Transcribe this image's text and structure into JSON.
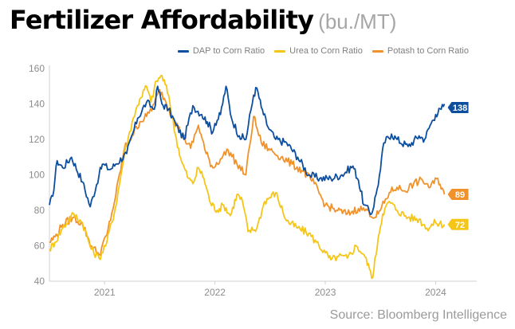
{
  "header": {
    "title": "Fertilizer Affordability",
    "subtitle": "(bu./MT)"
  },
  "source": "Source: Bloomberg Intelligence",
  "chart_data": {
    "type": "line",
    "title": "Fertilizer Affordability",
    "subtitle": "(bu./MT)",
    "xlabel": "",
    "ylabel": "",
    "ylim": [
      40,
      160
    ],
    "xlim": [
      2020.5,
      2024.3
    ],
    "yticks": [
      {
        "value": 40,
        "label": "40"
      },
      {
        "value": 60,
        "label": "60"
      },
      {
        "value": 80,
        "label": "80"
      },
      {
        "value": 100,
        "label": "100"
      },
      {
        "value": 120,
        "label": "120"
      },
      {
        "value": 140,
        "label": "140"
      },
      {
        "value": 160,
        "label": "160"
      }
    ],
    "xticks": [
      {
        "value": 2021.0,
        "label": "2021"
      },
      {
        "value": 2022.0,
        "label": "2022"
      },
      {
        "value": 2023.0,
        "label": "2023"
      },
      {
        "value": 2024.0,
        "label": "2024"
      }
    ],
    "grid": false,
    "legend": "top-right",
    "colors": {
      "dap": "#0d4f9e",
      "urea": "#f5c518",
      "potash": "#f0922b"
    },
    "series": [
      {
        "name": "DAP to Corn Ratio",
        "color": "#0d4f9e",
        "end_label": "138",
        "x": [
          2020.5,
          2020.53,
          2020.57,
          2020.62,
          2020.7,
          2020.8,
          2020.87,
          2020.95,
          2020.98,
          2021.05,
          2021.1,
          2021.2,
          2021.3,
          2021.38,
          2021.45,
          2021.48,
          2021.52,
          2021.58,
          2021.65,
          2021.72,
          2021.8,
          2021.88,
          2021.93,
          2021.98,
          2022.0,
          2022.05,
          2022.1,
          2022.15,
          2022.22,
          2022.28,
          2022.35,
          2022.38,
          2022.42,
          2022.48,
          2022.55,
          2022.65,
          2022.75,
          2022.85,
          2022.95,
          2023.05,
          2023.15,
          2023.25,
          2023.3,
          2023.35,
          2023.42,
          2023.47,
          2023.5,
          2023.53,
          2023.6,
          2023.65,
          2023.75,
          2023.85,
          2023.9,
          2023.95,
          2024.0,
          2024.05,
          2024.08
        ],
        "y": [
          83,
          88,
          108,
          104,
          110,
          96,
          82,
          100,
          106,
          103,
          106,
          112,
          132,
          141,
          137,
          150,
          140,
          137,
          128,
          120,
          139,
          134,
          130,
          124,
          129,
          134,
          150,
          132,
          122,
          120,
          145,
          149,
          138,
          127,
          120,
          118,
          110,
          100,
          98,
          98,
          100,
          105,
          97,
          83,
          78,
          92,
          103,
          118,
          123,
          120,
          116,
          122,
          120,
          128,
          134,
          137,
          140
        ]
      },
      {
        "name": "Urea to Corn Ratio",
        "color": "#f5c518",
        "end_label": "72",
        "x": [
          2020.5,
          2020.55,
          2020.62,
          2020.72,
          2020.8,
          2020.88,
          2020.95,
          2021.02,
          2021.1,
          2021.18,
          2021.25,
          2021.32,
          2021.38,
          2021.42,
          2021.47,
          2021.52,
          2021.58,
          2021.64,
          2021.7,
          2021.76,
          2021.8,
          2021.85,
          2021.9,
          2021.96,
          2022.02,
          2022.08,
          2022.14,
          2022.2,
          2022.25,
          2022.3,
          2022.38,
          2022.45,
          2022.55,
          2022.65,
          2022.75,
          2022.85,
          2022.92,
          2023.0,
          2023.05,
          2023.12,
          2023.2,
          2023.28,
          2023.35,
          2023.4,
          2023.43,
          2023.48,
          2023.52,
          2023.58,
          2023.65,
          2023.75,
          2023.85,
          2023.92,
          2024.0,
          2024.08
        ],
        "y": [
          58,
          62,
          70,
          78,
          73,
          58,
          53,
          62,
          82,
          112,
          130,
          143,
          150,
          141,
          153,
          156,
          145,
          123,
          107,
          98,
          95,
          104,
          98,
          84,
          80,
          83,
          77,
          89,
          85,
          68,
          70,
          85,
          90,
          74,
          70,
          67,
          62,
          56,
          52,
          54,
          53,
          60,
          55,
          47,
          42,
          65,
          78,
          85,
          80,
          76,
          75,
          70,
          73,
          72
        ]
      },
      {
        "name": "Potash to Corn Ratio",
        "color": "#f0922b",
        "end_label": "89",
        "x": [
          2020.5,
          2020.55,
          2020.62,
          2020.72,
          2020.8,
          2020.88,
          2020.95,
          2021.02,
          2021.1,
          2021.18,
          2021.25,
          2021.32,
          2021.38,
          2021.45,
          2021.5,
          2021.55,
          2021.62,
          2021.7,
          2021.78,
          2021.85,
          2021.92,
          2021.98,
          2022.05,
          2022.12,
          2022.2,
          2022.28,
          2022.35,
          2022.42,
          2022.5,
          2022.6,
          2022.7,
          2022.8,
          2022.9,
          2023.0,
          2023.1,
          2023.2,
          2023.3,
          2023.38,
          2023.45,
          2023.5,
          2023.58,
          2023.65,
          2023.72,
          2023.8,
          2023.88,
          2023.95,
          2024.02,
          2024.08
        ],
        "y": [
          62,
          65,
          72,
          76,
          72,
          60,
          55,
          66,
          88,
          115,
          122,
          130,
          133,
          140,
          148,
          142,
          132,
          123,
          115,
          128,
          112,
          104,
          109,
          114,
          106,
          100,
          133,
          118,
          114,
          110,
          106,
          102,
          95,
          83,
          80,
          78,
          81,
          80,
          76,
          80,
          90,
          93,
          91,
          95,
          97,
          93,
          98,
          89
        ]
      }
    ]
  }
}
